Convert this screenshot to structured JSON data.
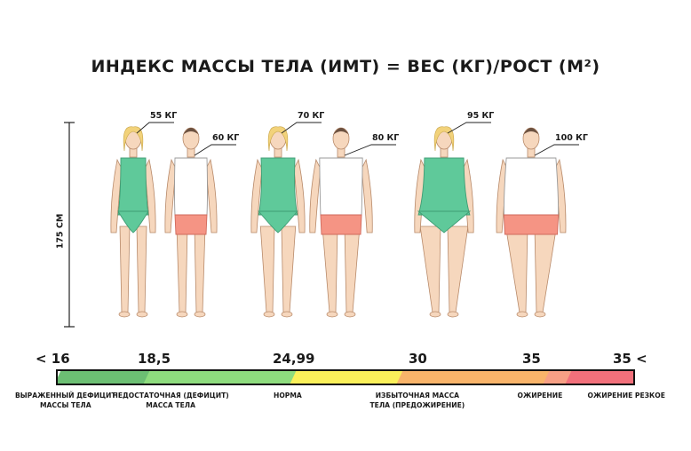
{
  "title": "ИНДЕКС МАССЫ ТЕЛА (ИМТ) = ВЕС (КГ)/РОСТ (М²)",
  "height_label": "175 СМ",
  "figures": [
    {
      "gender": "female",
      "weight": "55 КГ",
      "build": "thin",
      "top_color": "#5fc99a",
      "bottom_color": "#5fc99a"
    },
    {
      "gender": "male",
      "weight": "60 КГ",
      "build": "thin",
      "top_color": "#ffffff",
      "bottom_color": "#f59484"
    },
    {
      "gender": "female",
      "weight": "70 КГ",
      "build": "normal",
      "top_color": "#5fc99a",
      "bottom_color": "#5fc99a"
    },
    {
      "gender": "male",
      "weight": "80 КГ",
      "build": "normal",
      "top_color": "#ffffff",
      "bottom_color": "#f59484"
    },
    {
      "gender": "female",
      "weight": "95 КГ",
      "build": "heavy",
      "top_color": "#5fc99a",
      "bottom_color": "#5fc99a"
    },
    {
      "gender": "male",
      "weight": "100 КГ",
      "build": "heavy",
      "top_color": "#ffffff",
      "bottom_color": "#f59484"
    }
  ],
  "scale": {
    "ticks": [
      "< 16",
      "18,5",
      "24,99",
      "30",
      "35",
      "35 <"
    ],
    "categories": [
      {
        "label": "ВЫРАЖЕННЫЙ ДЕФИЦИТ МАССЫ ТЕЛА",
        "line1": "ВЫРАЖЕННЫЙ ДЕФИЦИТ",
        "line2": "МАССЫ ТЕЛА",
        "color": "#6cbf73"
      },
      {
        "label": "НЕДОСТАТОЧНАЯ (ДЕФИЦИТ) МАССА ТЕЛА",
        "line1": "НЕДОСТАТОЧНАЯ (ДЕФИЦИТ)",
        "line2": "МАССА ТЕЛА",
        "color": "#8edc7e"
      },
      {
        "label": "НОРМА",
        "line1": "НОРМА",
        "line2": "",
        "color": "#fbf05a"
      },
      {
        "label": "ИЗБЫТОЧНАЯ МАССА ТЕЛА (ПРЕДОЖИРЕНИЕ)",
        "line1": "ИЗБЫТОЧНАЯ МАССА",
        "line2": "ТЕЛА (ПРЕДОЖИРЕНИЕ)",
        "color": "#f9b46a"
      },
      {
        "label": "ОЖИРЕНИЕ",
        "line1": "ОЖИРЕНИЕ",
        "line2": "",
        "color": "#f7a085"
      },
      {
        "label": "ОЖИРЕНИЕ РЕЗКОЕ",
        "line1": "ОЖИРЕНИЕ РЕЗКОЕ",
        "line2": "",
        "color": "#f2707b"
      }
    ]
  }
}
